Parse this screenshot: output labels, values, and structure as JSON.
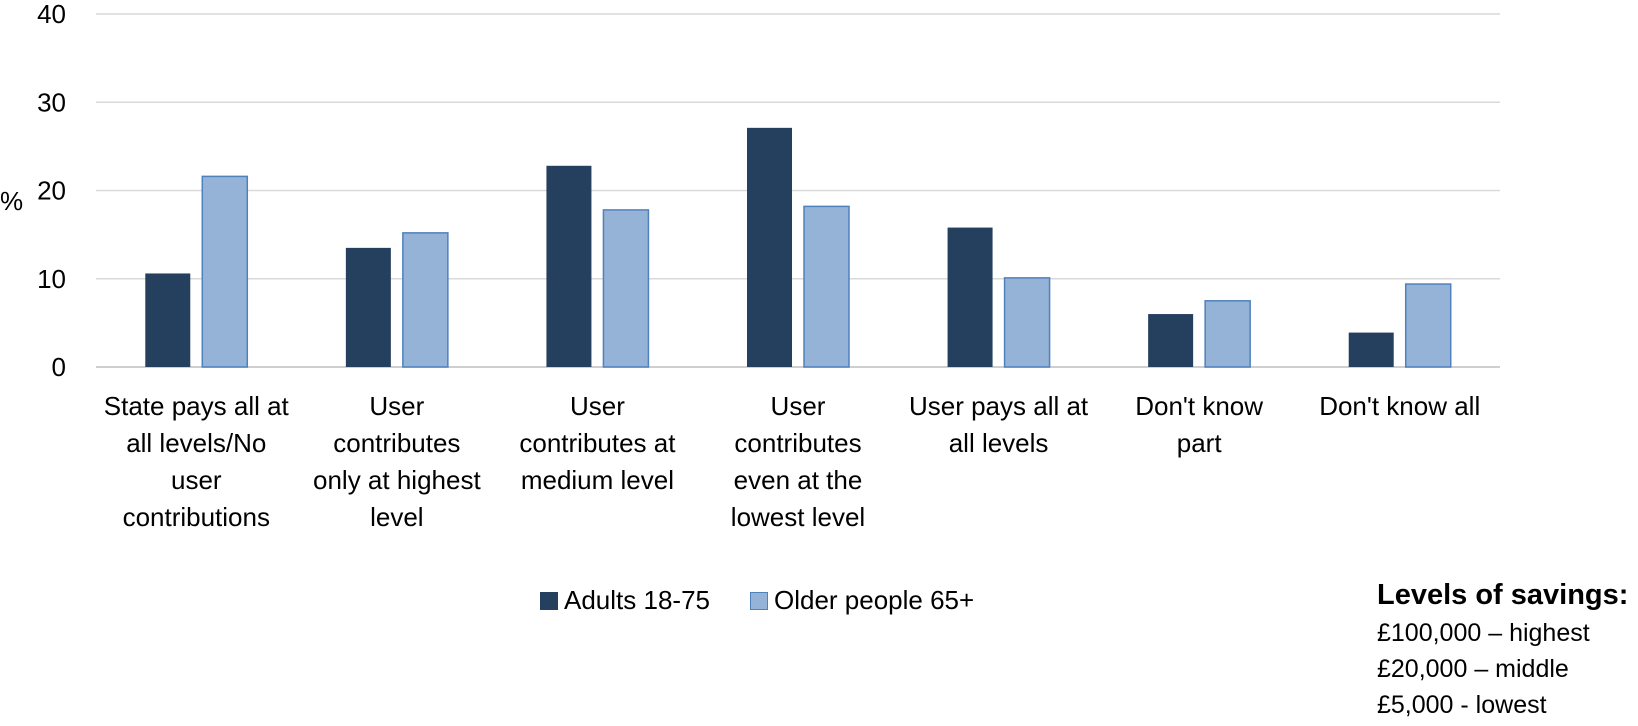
{
  "chart_data": {
    "type": "bar",
    "ylabel": "%",
    "ylim": [
      0,
      40
    ],
    "yticks": [
      "0",
      "10",
      "20",
      "30",
      "40"
    ],
    "grid": true,
    "legend_position": "bottom",
    "categories": [
      [
        "State pays all at",
        "all levels/No",
        "user",
        "contributions"
      ],
      [
        "User",
        "contributes",
        "only at highest",
        "level"
      ],
      [
        "User",
        "contributes at",
        "medium level"
      ],
      [
        "User",
        "contributes",
        "even at the",
        "lowest level"
      ],
      [
        "User pays all at",
        "all levels"
      ],
      [
        "Don't know",
        "part"
      ],
      [
        "Don't know all"
      ]
    ],
    "series": [
      {
        "name": "Adults 18-75",
        "color": "#253f5e",
        "values": [
          10.6,
          13.5,
          22.8,
          27.1,
          15.8,
          6.0,
          3.9
        ]
      },
      {
        "name": "Older people  65+",
        "color": "#95b3d7",
        "values": [
          21.6,
          15.2,
          17.8,
          18.2,
          10.1,
          7.5,
          9.4
        ]
      }
    ]
  },
  "notes": {
    "title": "Levels of savings:",
    "lines": [
      "£100,000 – highest",
      "£20,000 – middle",
      "£5,000 - lowest"
    ]
  }
}
